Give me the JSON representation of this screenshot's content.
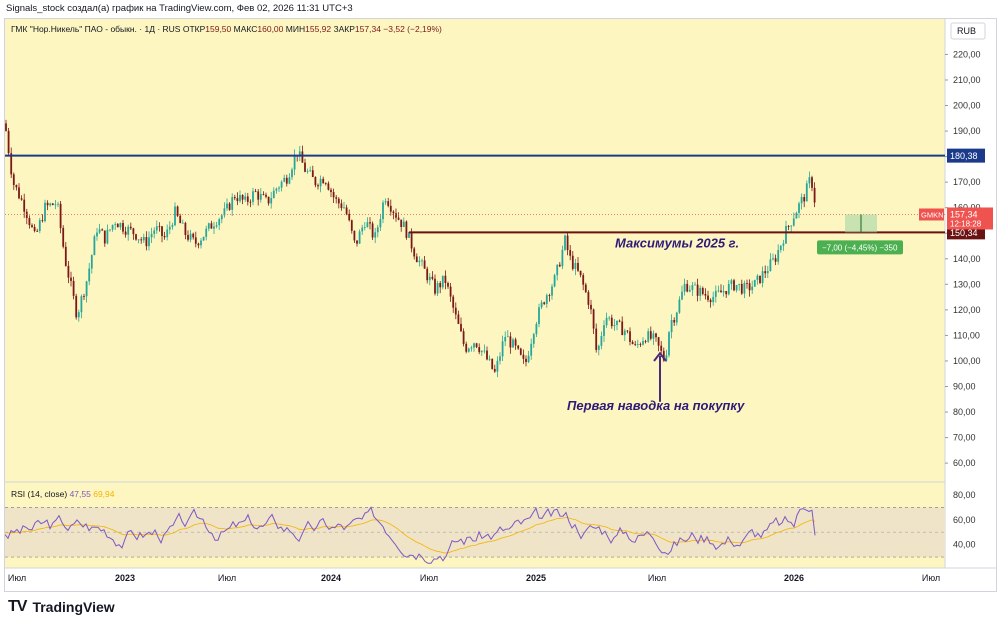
{
  "header": {
    "attribution": "Signals_stock создал(а) график на TradingView.com, Фев 02, 2026 11:31 UTC+3"
  },
  "legend": {
    "symbol": "ГМК \"Нор.Никель\" ПАО - обыкн. · 1Д · RUS",
    "open_label": "ОТКР",
    "open": "159,50",
    "high_label": "МАКС",
    "high": "160,00",
    "low_label": "МИН",
    "low": "155,92",
    "close_label": "ЗАКР",
    "close": "157,34",
    "change": "−3,52 (−2,19%)"
  },
  "currency": "RUB",
  "footer": {
    "brand": "TradingView",
    "logo": "TV"
  },
  "colors": {
    "bg": "#fdf6c0",
    "up": "#26a69a",
    "down": "#7b1818",
    "resistance": "#1b3a8c",
    "support": "#6b1212",
    "rsi": "#7e57c2",
    "annotation": "#2e1a78"
  },
  "chart_data": {
    "type": "candlestick",
    "price_axis": {
      "ticks": [
        "220,00",
        "210,00",
        "200,00",
        "190,00",
        "180,00",
        "170,00",
        "160,00",
        "150,00",
        "140,00",
        "130,00",
        "120,00",
        "110,00",
        "100,00",
        "90,00",
        "80,00",
        "70,00",
        "60,00"
      ],
      "range": [
        53,
        228
      ]
    },
    "time_axis": {
      "ticks": [
        "Июл",
        "2023",
        "Июл",
        "2024",
        "Июл",
        "2025",
        "Июл",
        "2026",
        "Июл"
      ]
    },
    "price_path": [
      [
        0,
        193
      ],
      [
        8,
        170
      ],
      [
        20,
        160
      ],
      [
        30,
        148
      ],
      [
        40,
        160
      ],
      [
        52,
        162
      ],
      [
        60,
        140
      ],
      [
        72,
        118
      ],
      [
        82,
        132
      ],
      [
        92,
        152
      ],
      [
        100,
        148
      ],
      [
        110,
        155
      ],
      [
        120,
        152
      ],
      [
        130,
        150
      ],
      [
        140,
        146
      ],
      [
        150,
        152
      ],
      [
        160,
        148
      ],
      [
        170,
        158
      ],
      [
        180,
        150
      ],
      [
        190,
        146
      ],
      [
        200,
        150
      ],
      [
        210,
        155
      ],
      [
        220,
        158
      ],
      [
        230,
        165
      ],
      [
        240,
        162
      ],
      [
        250,
        166
      ],
      [
        262,
        162
      ],
      [
        272,
        168
      ],
      [
        282,
        172
      ],
      [
        292,
        182
      ],
      [
        300,
        175
      ],
      [
        310,
        170
      ],
      [
        320,
        172
      ],
      [
        330,
        163
      ],
      [
        340,
        160
      ],
      [
        350,
        145
      ],
      [
        360,
        155
      ],
      [
        370,
        148
      ],
      [
        380,
        165
      ],
      [
        390,
        158
      ],
      [
        400,
        152
      ],
      [
        410,
        142
      ],
      [
        420,
        135
      ],
      [
        430,
        128
      ],
      [
        440,
        132
      ],
      [
        450,
        118
      ],
      [
        460,
        105
      ],
      [
        470,
        108
      ],
      [
        480,
        102
      ],
      [
        490,
        95
      ],
      [
        500,
        110
      ],
      [
        510,
        105
      ],
      [
        520,
        98
      ],
      [
        530,
        115
      ],
      [
        540,
        125
      ],
      [
        550,
        132
      ],
      [
        560,
        147
      ],
      [
        565,
        140
      ],
      [
        575,
        133
      ],
      [
        585,
        122
      ],
      [
        592,
        102
      ],
      [
        600,
        118
      ],
      [
        610,
        114
      ],
      [
        620,
        112
      ],
      [
        630,
        105
      ],
      [
        640,
        110
      ],
      [
        650,
        108
      ],
      [
        660,
        100
      ],
      [
        665,
        115
      ],
      [
        670,
        118
      ],
      [
        680,
        130
      ],
      [
        690,
        128
      ],
      [
        700,
        126
      ],
      [
        710,
        125
      ],
      [
        720,
        128
      ],
      [
        730,
        130
      ],
      [
        740,
        128
      ],
      [
        750,
        130
      ],
      [
        760,
        135
      ],
      [
        770,
        140
      ],
      [
        780,
        150
      ],
      [
        790,
        158
      ],
      [
        800,
        165
      ],
      [
        806,
        172
      ],
      [
        812,
        157.34
      ]
    ],
    "current_price": "157,34",
    "current_countdown": "12:18:28",
    "ticker_tag": "GMKN",
    "levels": [
      {
        "name": "resistance",
        "value": 180.38,
        "label": "180,38"
      },
      {
        "name": "max-2025",
        "value": 150.34,
        "label": "150,34",
        "text": "Максимумы 2025 г."
      }
    ],
    "annotations": [
      {
        "text": "Первая наводка на покупку"
      }
    ],
    "position_label": "−7,00 (−4,45%) −350",
    "rsi": {
      "label": "RSI (14, close)",
      "value": "47,55",
      "ma_value": "69,94",
      "ticks": [
        "80,00",
        "60,00",
        "40,00"
      ],
      "bands": [
        70,
        30
      ],
      "mid": 50,
      "range": [
        22,
        88
      ]
    }
  }
}
